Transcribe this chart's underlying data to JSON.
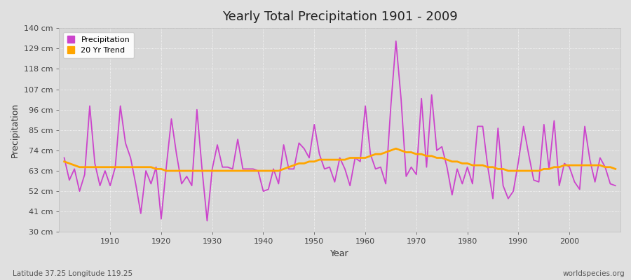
{
  "title": "Yearly Total Precipitation 1901 - 2009",
  "xlabel": "Year",
  "ylabel": "Precipitation",
  "subtitle_left": "Latitude 37.25 Longitude 119.25",
  "subtitle_right": "worldspecies.org",
  "years": [
    1901,
    1902,
    1903,
    1904,
    1905,
    1906,
    1907,
    1908,
    1909,
    1910,
    1911,
    1912,
    1913,
    1914,
    1915,
    1916,
    1917,
    1918,
    1919,
    1920,
    1921,
    1922,
    1923,
    1924,
    1925,
    1926,
    1927,
    1928,
    1929,
    1930,
    1931,
    1932,
    1933,
    1934,
    1935,
    1936,
    1937,
    1938,
    1939,
    1940,
    1941,
    1942,
    1943,
    1944,
    1945,
    1946,
    1947,
    1948,
    1949,
    1950,
    1951,
    1952,
    1953,
    1954,
    1955,
    1956,
    1957,
    1958,
    1959,
    1960,
    1961,
    1962,
    1963,
    1964,
    1965,
    1966,
    1967,
    1968,
    1969,
    1970,
    1971,
    1972,
    1973,
    1974,
    1975,
    1976,
    1977,
    1978,
    1979,
    1980,
    1981,
    1982,
    1983,
    1984,
    1985,
    1986,
    1987,
    1988,
    1989,
    1990,
    1991,
    1992,
    1993,
    1994,
    1995,
    1996,
    1997,
    1998,
    1999,
    2000,
    2001,
    2002,
    2003,
    2004,
    2005,
    2006,
    2007,
    2008,
    2009
  ],
  "precipitation": [
    70,
    58,
    64,
    52,
    61,
    98,
    67,
    55,
    63,
    55,
    65,
    98,
    78,
    70,
    56,
    40,
    63,
    56,
    65,
    37,
    65,
    91,
    72,
    56,
    60,
    55,
    96,
    64,
    36,
    64,
    77,
    65,
    65,
    64,
    80,
    64,
    64,
    64,
    63,
    52,
    53,
    64,
    56,
    77,
    64,
    64,
    78,
    75,
    70,
    88,
    72,
    64,
    65,
    57,
    70,
    64,
    55,
    70,
    68,
    98,
    72,
    64,
    65,
    56,
    98,
    133,
    102,
    60,
    65,
    61,
    102,
    65,
    104,
    74,
    76,
    65,
    50,
    64,
    56,
    65,
    56,
    87,
    87,
    65,
    48,
    86,
    55,
    48,
    52,
    68,
    87,
    72,
    58,
    57,
    88,
    64,
    90,
    55,
    67,
    65,
    57,
    53,
    87,
    69,
    57,
    70,
    65,
    56,
    55
  ],
  "trend": [
    68,
    67,
    66,
    65,
    65,
    65,
    65,
    65,
    65,
    65,
    65,
    65,
    65,
    65,
    65,
    65,
    65,
    65,
    64,
    64,
    63,
    63,
    63,
    63,
    63,
    63,
    63,
    63,
    63,
    63,
    63,
    63,
    63,
    63,
    63,
    63,
    63,
    63,
    63,
    63,
    63,
    63,
    63,
    64,
    65,
    66,
    67,
    67,
    68,
    68,
    69,
    69,
    69,
    69,
    69,
    69,
    70,
    70,
    70,
    70,
    71,
    72,
    72,
    73,
    74,
    75,
    74,
    73,
    73,
    72,
    72,
    71,
    71,
    70,
    70,
    69,
    68,
    68,
    67,
    67,
    66,
    66,
    66,
    65,
    65,
    64,
    64,
    63,
    63,
    63,
    63,
    63,
    63,
    63,
    64,
    64,
    65,
    65,
    66,
    66,
    66,
    66,
    66,
    66,
    66,
    66,
    65,
    65,
    64
  ],
  "precip_color": "#CC44CC",
  "trend_color": "#FFA500",
  "bg_color": "#E0E0E0",
  "plot_bg_color": "#D8D8D8",
  "grid_color": "#FFFFFF",
  "ytick_labels": [
    "30 cm",
    "41 cm",
    "52 cm",
    "63 cm",
    "74 cm",
    "85 cm",
    "96 cm",
    "107 cm",
    "118 cm",
    "129 cm",
    "140 cm"
  ],
  "ytick_values": [
    30,
    41,
    52,
    63,
    74,
    85,
    96,
    107,
    118,
    129,
    140
  ],
  "ylim": [
    30,
    140
  ],
  "xlim": [
    1900,
    2010
  ],
  "legend_entries": [
    "Precipitation",
    "20 Yr Trend"
  ]
}
